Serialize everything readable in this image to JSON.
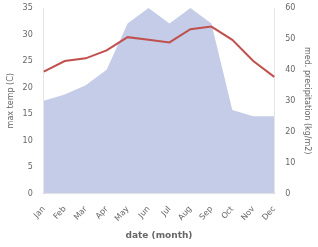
{
  "chart_data": {
    "type": "line",
    "xlabel": "date (month)",
    "ylabel": "max temp (C)",
    "y2label": "med. precipitation (kg/m2)",
    "categories": [
      "Jan",
      "Feb",
      "Mar",
      "Apr",
      "May",
      "Jun",
      "Jul",
      "Aug",
      "Sep",
      "Oct",
      "Nov",
      "Dec"
    ],
    "series": [
      {
        "type": "area",
        "color": "#c5cce8",
        "axis": "y2",
        "values": [
          30,
          32,
          35,
          40,
          55,
          60,
          55,
          60,
          55,
          27,
          25,
          25
        ]
      },
      {
        "type": "line",
        "color": "#c0504d",
        "axis": "y",
        "values": [
          23,
          25,
          25.5,
          27,
          29.5,
          29,
          28.5,
          31,
          31.5,
          29,
          25,
          22
        ]
      }
    ],
    "ylim": [
      0,
      35
    ],
    "yticks": [
      0,
      5,
      10,
      15,
      20,
      25,
      30,
      35
    ],
    "y2lim": [
      0,
      60
    ],
    "y2ticks": [
      0,
      10,
      20,
      30,
      40,
      50,
      60
    ],
    "grid": false
  }
}
